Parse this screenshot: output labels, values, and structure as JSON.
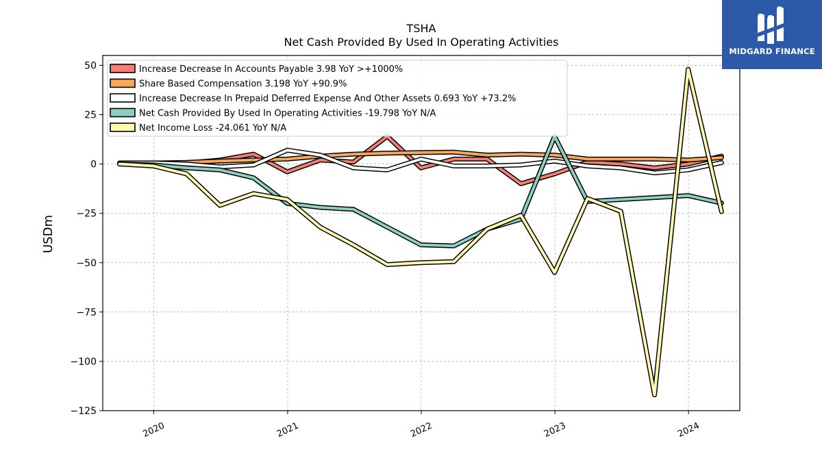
{
  "brand": {
    "name": "MIDGARD FINANCE",
    "bg_color": "#2c5aa8"
  },
  "chart_data": {
    "type": "line",
    "title": "TSHA",
    "subtitle": "Net Cash Provided By Used In Operating Activities",
    "ylabel": "USDm",
    "xlabel": "",
    "ylim": [
      -125,
      55
    ],
    "xlim": [
      "2019-08-15",
      "2024-05-20"
    ],
    "yticks": [
      50,
      25,
      0,
      -25,
      -50,
      -75,
      -100,
      -125
    ],
    "ytick_labels": [
      "50",
      "25",
      "0",
      "−25",
      "−50",
      "−75",
      "−100",
      "−125"
    ],
    "xticks": [
      "2020-01-01",
      "2021-01-01",
      "2022-01-01",
      "2023-01-01",
      "2024-01-01"
    ],
    "xtick_labels": [
      "2020",
      "2021",
      "2022",
      "2023",
      "2024"
    ],
    "grid": true,
    "legend_position": "top-left",
    "x": [
      "2019-09-30",
      "2019-12-31",
      "2020-03-31",
      "2020-06-30",
      "2020-09-30",
      "2020-12-31",
      "2021-03-31",
      "2021-06-30",
      "2021-09-30",
      "2021-12-31",
      "2022-03-31",
      "2022-06-30",
      "2022-09-30",
      "2022-12-31",
      "2023-03-31",
      "2023-06-30",
      "2023-09-30",
      "2023-12-31",
      "2024-03-31"
    ],
    "series": [
      {
        "name": "Increase Decrease In Accounts Payable",
        "legend_label": "Increase Decrease In Accounts Payable  3.98 YoY >+1000%",
        "color": "#f47f72",
        "values": [
          0.5,
          0.5,
          0.5,
          2.0,
          5.0,
          -4.0,
          2.0,
          1.0,
          14.0,
          -2.0,
          2.5,
          2.5,
          -10.0,
          -5.0,
          1.0,
          0.0,
          -2.0,
          0.0,
          4.0
        ]
      },
      {
        "name": "Share Based Compensation",
        "legend_label": "Share Based Compensation  3.198 YoY +90.9%",
        "color": "#f8a95a",
        "values": [
          0.3,
          0.5,
          0.8,
          1.5,
          2.0,
          2.5,
          4.0,
          5.0,
          5.5,
          5.8,
          6.0,
          4.5,
          5.0,
          4.5,
          2.5,
          2.5,
          2.5,
          2.0,
          3.2
        ]
      },
      {
        "name": "Increase Decrease In Prepaid Deferred Expense And Other Assets",
        "legend_label": "Increase Decrease In Prepaid Deferred Expense And Other Assets  0.693 YoY +73.2%",
        "color": "#ffffff",
        "values": [
          0.5,
          0.5,
          0.0,
          -1.5,
          -0.5,
          7.0,
          4.5,
          -2.0,
          -3.0,
          2.5,
          -1.0,
          -1.0,
          -0.5,
          1.5,
          -1.0,
          -2.0,
          -4.5,
          -3.0,
          0.7
        ]
      },
      {
        "name": "Net Cash Provided By Used In Operating Activities",
        "legend_label": "Net Cash Provided By Used In Operating Activities  -19.798 YoY N/A",
        "color": "#8ecfc4",
        "values": [
          0.0,
          -0.5,
          -2.0,
          -3.0,
          -7.0,
          -20.0,
          -22.0,
          -23.0,
          -32.0,
          -41.0,
          -41.5,
          -33.0,
          -28.0,
          14.0,
          -19.0,
          -18.0,
          -17.0,
          -16.0,
          -19.8
        ]
      },
      {
        "name": "Net Income Loss",
        "legend_label": "Net Income Loss  -24.061 YoY N/A",
        "color": "#fffab0",
        "values": [
          0.0,
          -1.0,
          -5.0,
          -21.0,
          -15.0,
          -18.0,
          -32.0,
          -41.0,
          -51.0,
          -50.0,
          -49.5,
          -33.0,
          -26.0,
          -55.0,
          -17.5,
          -24.0,
          -117.0,
          48.0,
          -24.1
        ]
      }
    ]
  }
}
